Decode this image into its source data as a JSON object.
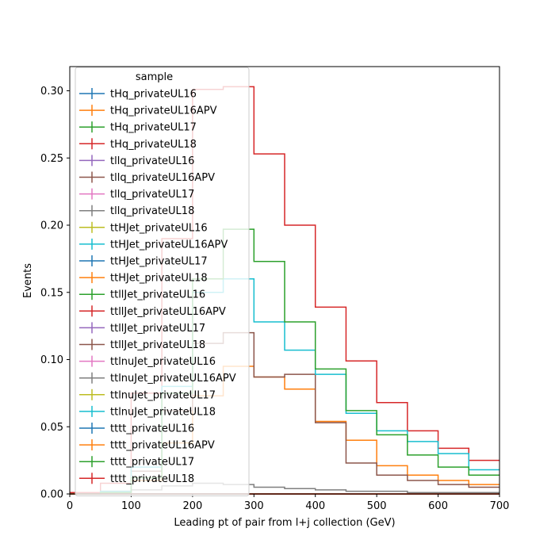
{
  "chart_data": {
    "type": "line",
    "style": "step-histogram",
    "xlabel": "Leading pt of pair from l+j collection (GeV)",
    "ylabel": "Events",
    "xlim": [
      0,
      700
    ],
    "ylim": [
      0,
      0.318
    ],
    "xticks": [
      "0",
      "100",
      "200",
      "300",
      "400",
      "500",
      "600",
      "700"
    ],
    "yticks": [
      "0.00",
      "0.05",
      "0.10",
      "0.15",
      "0.20",
      "0.25",
      "0.30"
    ],
    "grid": false,
    "legend": {
      "title": "sample",
      "placement": "top-left"
    },
    "bin_edges": [
      0,
      50,
      100,
      150,
      200,
      250,
      300,
      350,
      400,
      450,
      500,
      550,
      600,
      650,
      700
    ],
    "series": [
      {
        "name": "tHq_privateUL16",
        "color": "#1f77b4",
        "values": [
          0.0,
          0.0,
          0.0,
          0.0,
          0.0,
          0.0,
          0.0,
          0.0,
          0.0,
          0.0,
          0.0,
          0.0,
          0.0,
          0.0
        ]
      },
      {
        "name": "tHq_privateUL16APV",
        "color": "#ff7f0e",
        "values": [
          0.0,
          0.0,
          0.0,
          0.0,
          0.0,
          0.0,
          0.0,
          0.0,
          0.0,
          0.0,
          0.0,
          0.0,
          0.0,
          0.0
        ]
      },
      {
        "name": "tHq_privateUL17",
        "color": "#2ca02c",
        "values": [
          0.0,
          0.0,
          0.0,
          0.0,
          0.0,
          0.0,
          0.0,
          0.0,
          0.0,
          0.0,
          0.0,
          0.0,
          0.0,
          0.0
        ]
      },
      {
        "name": "tHq_privateUL18",
        "color": "#d62728",
        "values": [
          0.001,
          0.008,
          0.075,
          0.19,
          0.301,
          0.303,
          0.253,
          0.2,
          0.139,
          0.099,
          0.068,
          0.047,
          0.034,
          0.025
        ]
      },
      {
        "name": "tllq_privateUL16",
        "color": "#9467bd",
        "values": [
          0.0,
          0.0,
          0.0,
          0.0,
          0.0,
          0.0,
          0.0,
          0.0,
          0.0,
          0.0,
          0.0,
          0.0,
          0.0,
          0.0
        ]
      },
      {
        "name": "tllq_privateUL16APV",
        "color": "#8c564b",
        "values": [
          0.0,
          0.0,
          0.0,
          0.0,
          0.0,
          0.0,
          0.0,
          0.0,
          0.0,
          0.0,
          0.0,
          0.0,
          0.0,
          0.0
        ]
      },
      {
        "name": "tllq_privateUL17",
        "color": "#e377c2",
        "values": [
          0.0,
          0.0,
          0.0,
          0.0,
          0.0,
          0.0,
          0.0,
          0.0,
          0.0,
          0.0,
          0.0,
          0.0,
          0.0,
          0.0
        ]
      },
      {
        "name": "tllq_privateUL18",
        "color": "#7f7f7f",
        "values": [
          0.0,
          0.001,
          0.003,
          0.006,
          0.008,
          0.007,
          0.005,
          0.004,
          0.003,
          0.002,
          0.002,
          0.001,
          0.001,
          0.001
        ]
      },
      {
        "name": "ttHJet_privateUL16",
        "color": "#bcbd22",
        "values": [
          0.0,
          0.0,
          0.0,
          0.0,
          0.0,
          0.0,
          0.0,
          0.0,
          0.0,
          0.0,
          0.0,
          0.0,
          0.0,
          0.0
        ]
      },
      {
        "name": "ttHJet_privateUL16APV",
        "color": "#17becf",
        "values": [
          0.0,
          0.0,
          0.0,
          0.0,
          0.0,
          0.0,
          0.0,
          0.0,
          0.0,
          0.0,
          0.0,
          0.0,
          0.0,
          0.0
        ]
      },
      {
        "name": "ttHJet_privateUL17",
        "color": "#1f77b4",
        "values": [
          0.0,
          0.0,
          0.0,
          0.0,
          0.0,
          0.0,
          0.0,
          0.0,
          0.0,
          0.0,
          0.0,
          0.0,
          0.0,
          0.0
        ]
      },
      {
        "name": "ttHJet_privateUL18",
        "color": "#ff7f0e",
        "values": [
          0.0,
          0.001,
          0.01,
          0.038,
          0.073,
          0.095,
          0.087,
          0.078,
          0.054,
          0.04,
          0.021,
          0.014,
          0.01,
          0.007
        ]
      },
      {
        "name": "ttllJet_privateUL16",
        "color": "#2ca02c",
        "values": [
          0.0,
          0.0,
          0.0,
          0.0,
          0.0,
          0.0,
          0.0,
          0.0,
          0.0,
          0.0,
          0.0,
          0.0,
          0.0,
          0.0
        ]
      },
      {
        "name": "ttllJet_privateUL16APV",
        "color": "#d62728",
        "values": [
          0.0,
          0.0,
          0.0,
          0.0,
          0.0,
          0.0,
          0.0,
          0.0,
          0.0,
          0.0,
          0.0,
          0.0,
          0.0,
          0.0
        ]
      },
      {
        "name": "ttllJet_privateUL17",
        "color": "#9467bd",
        "values": [
          0.0,
          0.0,
          0.0,
          0.0,
          0.0,
          0.0,
          0.0,
          0.0,
          0.0,
          0.0,
          0.0,
          0.0,
          0.0,
          0.0
        ]
      },
      {
        "name": "ttllJet_privateUL18",
        "color": "#8c564b",
        "values": [
          0.0,
          0.002,
          0.017,
          0.062,
          0.112,
          0.12,
          0.087,
          0.089,
          0.053,
          0.023,
          0.014,
          0.01,
          0.007,
          0.005
        ]
      },
      {
        "name": "ttlnuJet_privateUL16",
        "color": "#e377c2",
        "values": [
          0.0,
          0.0,
          0.0,
          0.0,
          0.0,
          0.0,
          0.0,
          0.0,
          0.0,
          0.0,
          0.0,
          0.0,
          0.0,
          0.0
        ]
      },
      {
        "name": "ttlnuJet_privateUL16APV",
        "color": "#7f7f7f",
        "values": [
          0.0,
          0.0,
          0.0,
          0.0,
          0.0,
          0.0,
          0.0,
          0.0,
          0.0,
          0.0,
          0.0,
          0.0,
          0.0,
          0.0
        ]
      },
      {
        "name": "ttlnuJet_privateUL17",
        "color": "#bcbd22",
        "values": [
          0.0,
          0.0,
          0.0,
          0.0,
          0.0,
          0.0,
          0.0,
          0.0,
          0.0,
          0.0,
          0.0,
          0.0,
          0.0,
          0.0
        ]
      },
      {
        "name": "ttlnuJet_privateUL18",
        "color": "#17becf",
        "values": [
          0.0,
          0.002,
          0.02,
          0.08,
          0.15,
          0.16,
          0.128,
          0.107,
          0.089,
          0.06,
          0.047,
          0.039,
          0.03,
          0.018
        ]
      },
      {
        "name": "tttt_privateUL16",
        "color": "#1f77b4",
        "values": [
          0.0,
          0.0,
          0.0,
          0.0,
          0.0,
          0.0,
          0.0,
          0.0,
          0.0,
          0.0,
          0.0,
          0.0,
          0.0,
          0.0
        ]
      },
      {
        "name": "tttt_privateUL16APV",
        "color": "#ff7f0e",
        "values": [
          0.0,
          0.0,
          0.0,
          0.0,
          0.0,
          0.0,
          0.0,
          0.0,
          0.0,
          0.0,
          0.0,
          0.0,
          0.0,
          0.0
        ]
      },
      {
        "name": "tttt_privateUL17",
        "color": "#2ca02c",
        "values": [
          0.0,
          0.001,
          0.012,
          0.075,
          0.16,
          0.197,
          0.173,
          0.128,
          0.093,
          0.062,
          0.044,
          0.029,
          0.02,
          0.014
        ]
      },
      {
        "name": "tttt_privateUL18",
        "color": "#d62728",
        "values": [
          0.0,
          0.0,
          0.0,
          0.0,
          0.0,
          0.0,
          0.0,
          0.0,
          0.0,
          0.0,
          0.0,
          0.0,
          0.0,
          0.0
        ]
      }
    ]
  }
}
